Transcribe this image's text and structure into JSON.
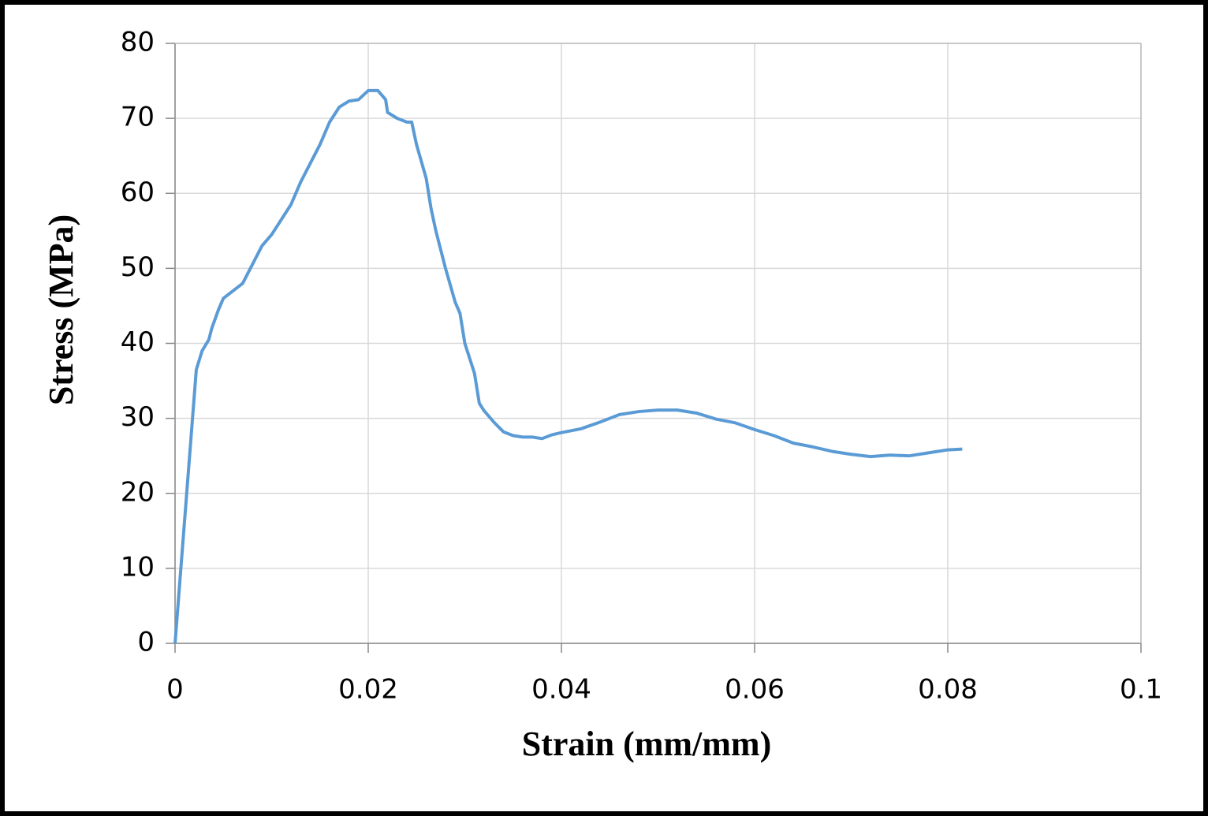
{
  "chart_data": {
    "type": "line",
    "x_label": "Strain (mm/mm)",
    "y_label": "Stress (MPa)",
    "xlim": [
      0,
      0.1
    ],
    "xticks": [
      0,
      0.02,
      0.04,
      0.06,
      0.08,
      0.1
    ],
    "ylim": [
      0,
      80
    ],
    "yticks": [
      0,
      10,
      20,
      30,
      40,
      50,
      60,
      70,
      80
    ],
    "grid": true,
    "series": [
      {
        "color": "#5b9bd5",
        "x": [
          0,
          0.0022,
          0.0028,
          0.0035,
          0.0038,
          0.0045,
          0.005,
          0.006,
          0.007,
          0.008,
          0.009,
          0.01,
          0.011,
          0.012,
          0.013,
          0.014,
          0.015,
          0.016,
          0.017,
          0.018,
          0.019,
          0.02,
          0.021,
          0.0218,
          0.022,
          0.023,
          0.024,
          0.0245,
          0.025,
          0.026,
          0.0265,
          0.027,
          0.028,
          0.029,
          0.0295,
          0.03,
          0.031,
          0.0315,
          0.032,
          0.033,
          0.034,
          0.035,
          0.036,
          0.037,
          0.038,
          0.039,
          0.04,
          0.042,
          0.044,
          0.046,
          0.048,
          0.05,
          0.052,
          0.054,
          0.056,
          0.058,
          0.06,
          0.062,
          0.064,
          0.066,
          0.068,
          0.07,
          0.072,
          0.074,
          0.076,
          0.078,
          0.08,
          0.0815
        ],
        "values": [
          0,
          36.5,
          39,
          40.5,
          42,
          44.5,
          46,
          47,
          48,
          50.5,
          53,
          54.5,
          56.5,
          58.5,
          61.5,
          64,
          66.5,
          69.5,
          71.5,
          72.3,
          72.5,
          73.7,
          73.7,
          72.5,
          70.8,
          70,
          69.5,
          69.5,
          66.5,
          62,
          58,
          55,
          50,
          45.5,
          44,
          40,
          36,
          32,
          31,
          29.5,
          28.2,
          27.7,
          27.5,
          27.5,
          27.3,
          27.8,
          28.1,
          28.6,
          29.5,
          30.5,
          30.9,
          31.1,
          31.1,
          30.7,
          29.9,
          29.4,
          28.5,
          27.7,
          26.7,
          26.2,
          25.6,
          25.2,
          24.9,
          25.1,
          25,
          25.4,
          25.8,
          25.9
        ]
      }
    ]
  }
}
